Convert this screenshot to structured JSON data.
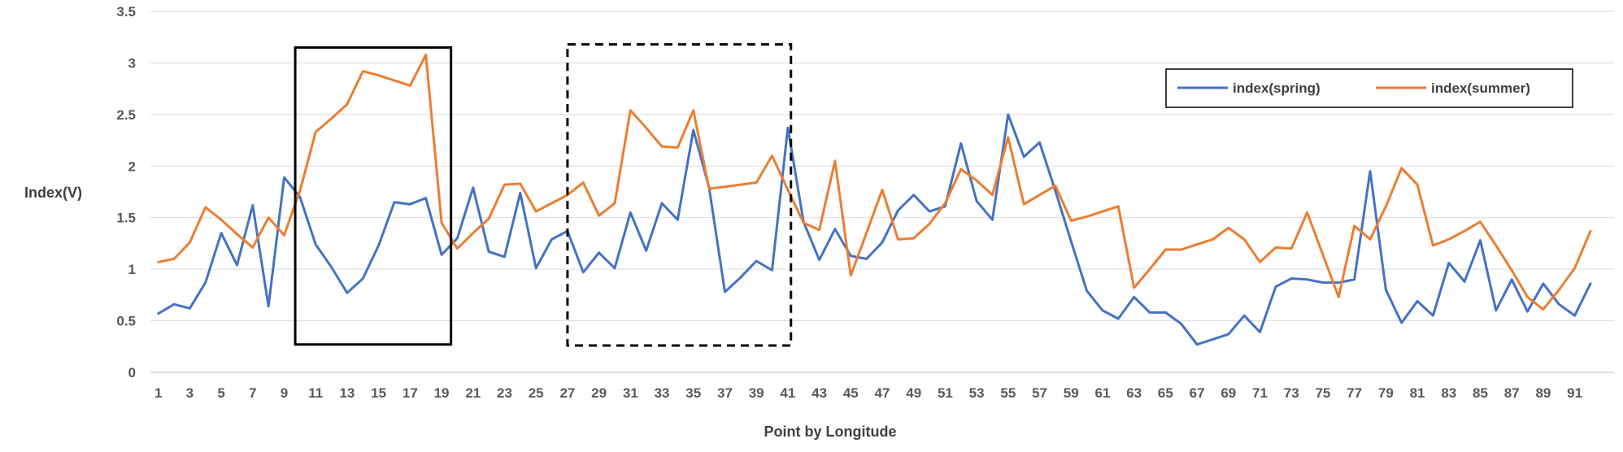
{
  "chart_data": {
    "type": "line",
    "xlabel": "Point by Longitude",
    "ylabel": "Index(V)",
    "ylim": [
      0,
      3.5
    ],
    "yticks": [
      "0",
      "0.5",
      "1",
      "1.5",
      "2",
      "2.5",
      "3",
      "3.5"
    ],
    "xticks": [
      "1",
      "3",
      "5",
      "7",
      "9",
      "11",
      "13",
      "15",
      "17",
      "19",
      "21",
      "23",
      "25",
      "27",
      "29",
      "31",
      "33",
      "35",
      "37",
      "39",
      "41",
      "43",
      "45",
      "47",
      "49",
      "51",
      "53",
      "55",
      "57",
      "59",
      "61",
      "63",
      "65",
      "67",
      "69",
      "71",
      "73",
      "75",
      "77",
      "79",
      "81",
      "83",
      "85",
      "87",
      "89",
      "91"
    ],
    "x": [
      1,
      2,
      3,
      4,
      5,
      6,
      7,
      8,
      9,
      10,
      11,
      12,
      13,
      14,
      15,
      16,
      17,
      18,
      19,
      20,
      21,
      22,
      23,
      24,
      25,
      26,
      27,
      28,
      29,
      30,
      31,
      32,
      33,
      34,
      35,
      36,
      37,
      38,
      39,
      40,
      41,
      42,
      43,
      44,
      45,
      46,
      47,
      48,
      49,
      50,
      51,
      52,
      53,
      54,
      55,
      56,
      57,
      58,
      59,
      60,
      61,
      62,
      63,
      64,
      65,
      66,
      67,
      68,
      69,
      70,
      71,
      72,
      73,
      74,
      75,
      76,
      77,
      78,
      79,
      80,
      81,
      82,
      83,
      84,
      85,
      86,
      87,
      88,
      89,
      90,
      91,
      92
    ],
    "grid": true,
    "legend_position": "top-right",
    "series": [
      {
        "name": "index(spring)",
        "color": "#4472C4",
        "values": [
          0.57,
          0.66,
          0.62,
          0.87,
          1.35,
          1.04,
          1.62,
          0.64,
          1.89,
          1.7,
          1.24,
          1.02,
          0.77,
          0.91,
          1.23,
          1.65,
          1.63,
          1.69,
          1.14,
          1.3,
          1.79,
          1.17,
          1.12,
          1.74,
          1.01,
          1.29,
          1.37,
          0.97,
          1.16,
          1.01,
          1.55,
          1.18,
          1.64,
          1.48,
          2.35,
          1.79,
          0.78,
          0.92,
          1.08,
          0.99,
          2.37,
          1.46,
          1.09,
          1.39,
          1.13,
          1.1,
          1.26,
          1.57,
          1.72,
          1.56,
          1.61,
          2.22,
          1.66,
          1.48,
          2.5,
          2.09,
          2.23,
          1.76,
          1.27,
          0.79,
          0.6,
          0.52,
          0.73,
          0.58,
          0.58,
          0.47,
          0.27,
          0.32,
          0.37,
          0.55,
          0.39,
          0.83,
          0.91,
          0.9,
          0.87,
          0.87,
          0.9,
          1.95,
          0.8,
          0.48,
          0.69,
          0.55,
          1.06,
          0.88,
          1.28,
          0.6,
          0.9,
          0.59,
          0.86,
          0.66,
          0.55,
          0.86
        ]
      },
      {
        "name": "index(summer)",
        "color": "#ED7D31",
        "values": [
          1.07,
          1.1,
          1.26,
          1.6,
          1.48,
          1.34,
          1.21,
          1.5,
          1.33,
          1.76,
          2.33,
          2.46,
          2.6,
          2.92,
          2.88,
          2.83,
          2.78,
          3.08,
          1.45,
          1.2,
          1.35,
          1.49,
          1.82,
          1.83,
          1.56,
          1.64,
          1.72,
          1.84,
          1.52,
          1.64,
          2.54,
          2.37,
          2.19,
          2.18,
          2.54,
          1.78,
          1.8,
          1.82,
          1.84,
          2.1,
          1.77,
          1.45,
          1.38,
          2.05,
          0.94,
          1.35,
          1.77,
          1.29,
          1.3,
          1.44,
          1.64,
          1.97,
          1.86,
          1.72,
          2.28,
          1.63,
          1.72,
          1.81,
          1.47,
          1.51,
          1.56,
          1.61,
          0.82,
          1.0,
          1.19,
          1.19,
          1.24,
          1.29,
          1.4,
          1.29,
          1.07,
          1.21,
          1.2,
          1.55,
          1.14,
          0.73,
          1.42,
          1.29,
          1.61,
          1.98,
          1.82,
          1.23,
          1.29,
          1.37,
          1.46,
          1.23,
          0.99,
          0.73,
          0.61,
          0.8,
          1.01,
          1.37
        ]
      }
    ],
    "annotations": [
      {
        "type": "rectangle",
        "style": "solid",
        "x_range": [
          9.7,
          19.6
        ],
        "y_range": [
          0.27,
          3.15
        ]
      },
      {
        "type": "rectangle",
        "style": "dashed",
        "x_range": [
          27.0,
          41.2
        ],
        "y_range": [
          0.26,
          3.18
        ]
      }
    ]
  }
}
